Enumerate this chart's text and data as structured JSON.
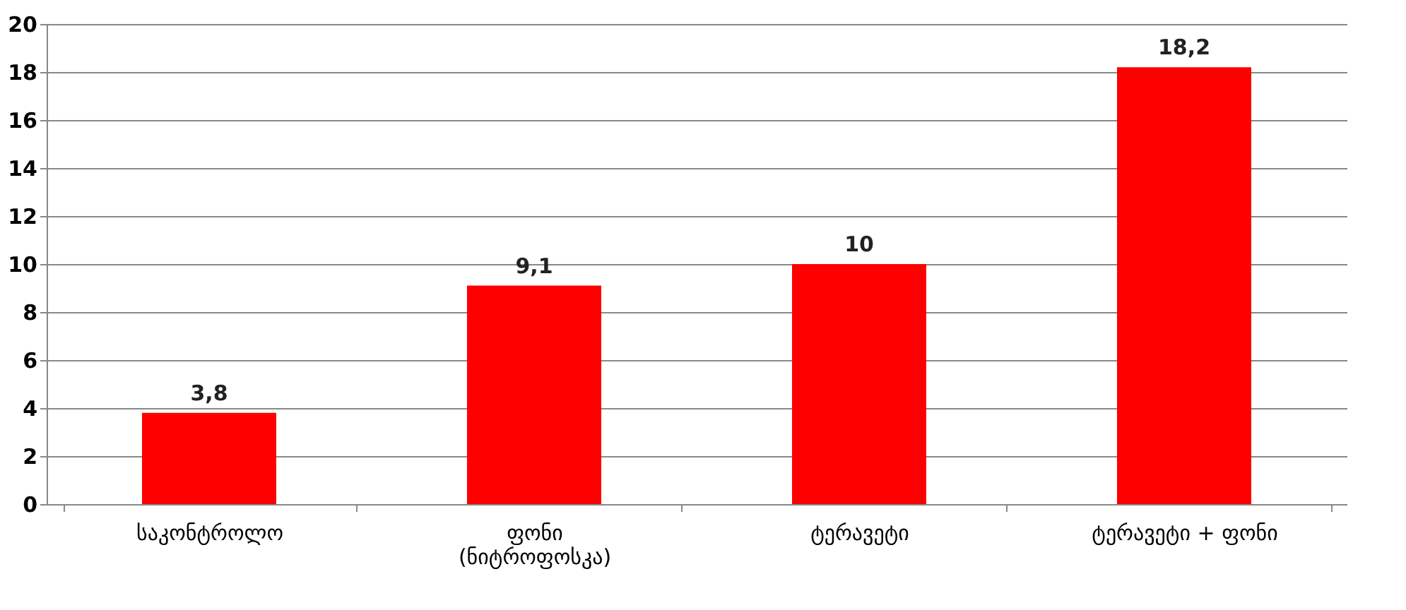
{
  "chart_data": {
    "type": "bar",
    "categories": [
      "საკონტროლო",
      "ფონი\n(ნიტროფოსკა)",
      "ტერავეტი",
      "ტერავეტი + ფონი"
    ],
    "values": [
      3.8,
      9.1,
      10,
      18.2
    ],
    "value_labels": [
      "3,8",
      "9,1",
      "10",
      "18,2"
    ],
    "color": "#ff0000",
    "ylim": [
      0,
      20
    ],
    "yticks": [
      0,
      2,
      4,
      6,
      8,
      10,
      12,
      14,
      16,
      18,
      20
    ],
    "grid": "y"
  }
}
